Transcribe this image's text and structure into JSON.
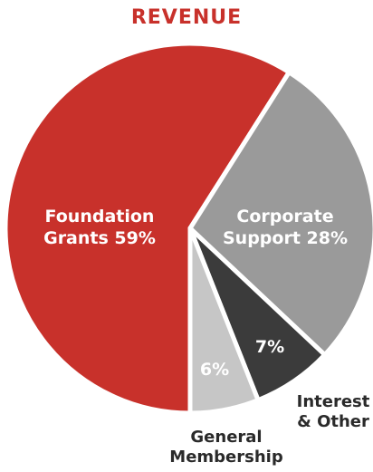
{
  "chart_data": {
    "type": "pie",
    "title": "REVENUE",
    "slices": [
      {
        "label_lines": [
          "Foundation",
          "Grants 59%"
        ],
        "value": 59,
        "color": "#c8312b"
      },
      {
        "label_lines": [
          "Corporate",
          "Support 28%"
        ],
        "value": 28,
        "color": "#9a9a9a"
      },
      {
        "label_lines": [
          "7%"
        ],
        "outer_label_lines": [
          "Interest",
          "& Other"
        ],
        "value": 7,
        "color": "#3b3b3b"
      },
      {
        "label_lines": [
          "6%"
        ],
        "outer_label_lines": [
          "General",
          "Membership"
        ],
        "value": 6,
        "color": "#c6c6c6"
      }
    ],
    "colors": {
      "title": "#c8312b",
      "inner_text": "#ffffff",
      "outer_text": "#2a2a2a",
      "separator": "#ffffff"
    }
  }
}
